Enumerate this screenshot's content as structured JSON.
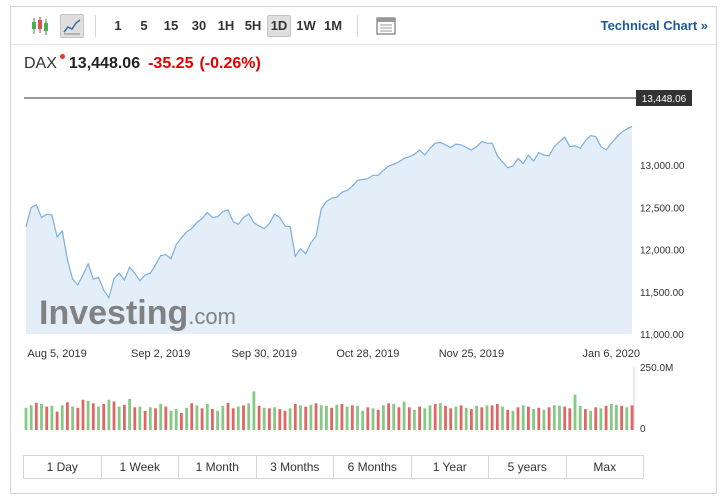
{
  "toolbar": {
    "intervals": [
      "1",
      "5",
      "15",
      "30",
      "1H",
      "5H",
      "1D",
      "1W",
      "1M"
    ],
    "active_interval": "1D",
    "technical_chart_label": "Technical Chart »"
  },
  "quote": {
    "symbol": "DAX",
    "last": "13,448.06",
    "change": "-35.25",
    "change_pct": "(-0.26%)",
    "down_color": "#e00000"
  },
  "watermark": {
    "main": "Investing",
    "suffix": ".com"
  },
  "ranges": [
    "1 Day",
    "1 Week",
    "1 Month",
    "3 Months",
    "6 Months",
    "1 Year",
    "5 years",
    "Max"
  ],
  "chart_data": {
    "type": "area",
    "title": "",
    "last_label": "13,448.06",
    "price_ticks": [
      "13,000.00",
      "12,500.00",
      "12,000.00",
      "11,500.00",
      "11,000.00"
    ],
    "price_tick_values": [
      13000,
      12500,
      12000,
      11500,
      11000
    ],
    "ylim": [
      11000,
      13950
    ],
    "x_tick_labels": [
      "Aug 5, 2019",
      "Sep 2, 2019",
      "Sep 30, 2019",
      "Oct 28, 2019",
      "Nov 25, 2019",
      "Jan 6, 2020"
    ],
    "x_tick_index": [
      6,
      26,
      46,
      66,
      86,
      113
    ],
    "volume_ticks": [
      "250.0M",
      "0"
    ],
    "volume_ylim": [
      0,
      250
    ],
    "line_color": "#7aaee0",
    "fill_color": "#e4eef8",
    "up_color": "#86c886",
    "down_color": "#e06666",
    "values": [
      12270,
      12500,
      12530,
      12380,
      12420,
      12410,
      12150,
      12220,
      11880,
      11650,
      11580,
      11700,
      11830,
      11650,
      11670,
      11520,
      11430,
      11660,
      11720,
      11640,
      11790,
      11720,
      11630,
      11700,
      11720,
      11820,
      11930,
      11940,
      11890,
      12060,
      12140,
      12210,
      12250,
      12320,
      12370,
      12440,
      12380,
      12390,
      12450,
      12470,
      12330,
      12300,
      12380,
      12420,
      12320,
      12280,
      12250,
      12310,
      12420,
      12380,
      12280,
      12270,
      11920,
      12010,
      11950,
      12080,
      12160,
      12480,
      12570,
      12610,
      12620,
      12680,
      12700,
      12750,
      12820,
      12830,
      12840,
      12880,
      12880,
      12940,
      12990,
      13010,
      13040,
      13080,
      13100,
      13130,
      13180,
      13120,
      13200,
      13260,
      13270,
      13240,
      13210,
      13250,
      13240,
      13210,
      13180,
      13220,
      13280,
      13260,
      13260,
      13110,
      13040,
      12970,
      12990,
      13080,
      13020,
      13120,
      13050,
      13150,
      13120,
      13110,
      13220,
      13280,
      13330,
      13220,
      13230,
      13200,
      13290,
      13350,
      13340,
      13220,
      13180,
      13260,
      13330,
      13390,
      13430,
      13460
    ],
    "volumes": [
      88,
      98,
      108,
      103,
      93,
      96,
      73,
      98,
      110,
      93,
      88,
      120,
      116,
      106,
      93,
      103,
      120,
      113,
      93,
      100,
      123,
      90,
      93,
      76,
      90,
      86,
      103,
      93,
      76,
      83,
      68,
      88,
      106,
      98,
      86,
      103,
      83,
      76,
      96,
      108,
      86,
      93,
      98,
      106,
      153,
      96,
      88,
      86,
      90,
      83,
      76,
      86,
      103,
      98,
      93,
      100,
      106,
      98,
      96,
      88,
      100,
      103,
      93,
      98,
      96,
      76,
      90,
      86,
      80,
      98,
      106,
      103,
      90,
      113,
      90,
      80,
      93,
      86,
      98,
      103,
      106,
      96,
      86,
      93,
      98,
      88,
      83,
      96,
      90,
      98,
      98,
      103,
      93,
      80,
      76,
      90,
      98,
      93,
      83,
      88,
      80,
      90,
      98,
      96,
      93,
      86,
      140,
      96,
      83,
      76,
      90,
      86,
      96,
      103,
      100,
      96,
      90,
      98
    ],
    "vol_up": [
      true,
      true,
      false,
      true,
      false,
      true,
      false,
      true,
      false,
      true,
      false,
      false,
      true,
      false,
      true,
      false,
      true,
      false,
      true,
      false,
      true,
      false,
      true,
      false,
      true,
      false,
      true,
      false,
      true,
      true,
      false,
      true,
      false,
      true,
      false,
      true,
      false,
      true,
      true,
      false,
      false,
      true,
      false,
      true,
      true,
      false,
      true,
      false,
      true,
      false,
      false,
      true,
      false,
      true,
      false,
      true,
      false,
      true,
      true,
      false,
      true,
      false,
      true,
      false,
      true,
      true,
      false,
      true,
      false,
      true,
      false,
      true,
      false,
      true,
      false,
      true,
      false,
      true,
      true,
      false,
      true,
      false,
      false,
      true,
      false,
      true,
      false,
      true,
      false,
      true,
      false,
      false,
      true,
      false,
      true,
      false,
      true,
      false,
      true,
      false,
      true,
      false,
      true,
      true,
      false,
      false,
      true,
      true,
      false,
      true,
      false,
      true,
      false,
      true,
      true,
      false,
      true,
      false
    ]
  }
}
